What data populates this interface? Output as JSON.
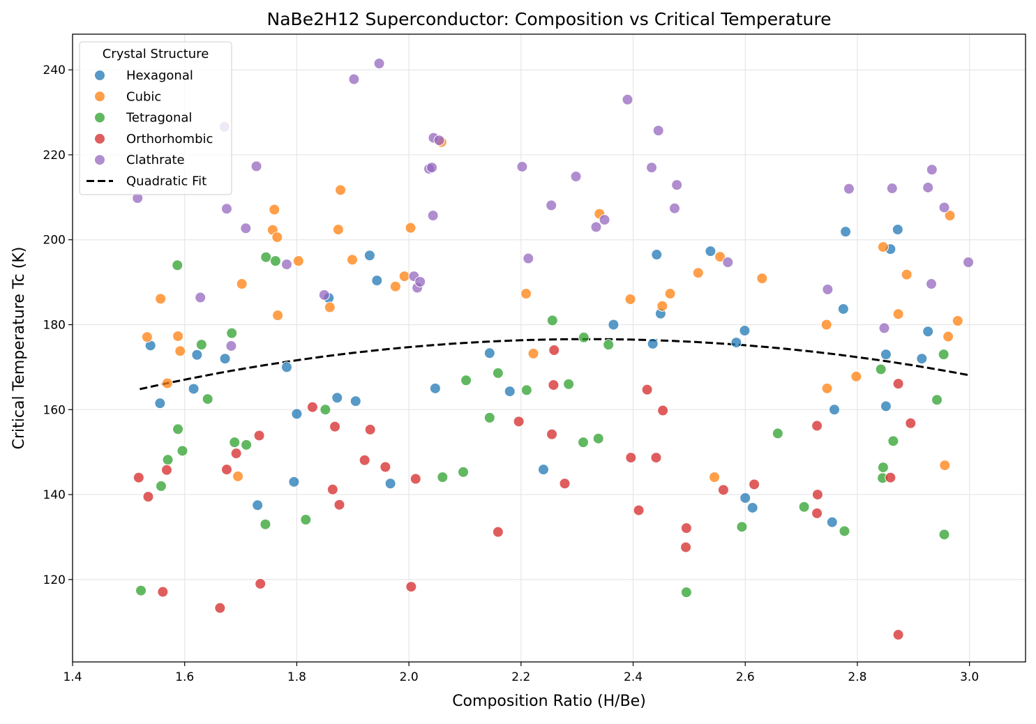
{
  "chart_data": {
    "type": "scatter",
    "title": "NaBe2H12 Superconductor: Composition vs Critical Temperature",
    "xlabel": "Composition Ratio (H/Be)",
    "ylabel": "Critical Temperature Tc (K)",
    "xlim": [
      1.4,
      3.1
    ],
    "ylim": [
      100.6,
      248.4
    ],
    "xticks": [
      1.4,
      1.6,
      1.8,
      2.0,
      2.2,
      2.4,
      2.6,
      2.8,
      3.0
    ],
    "xtick_labels": [
      "1.4",
      "1.6",
      "1.8",
      "2.0",
      "2.2",
      "2.4",
      "2.6",
      "2.8",
      "3.0"
    ],
    "yticks": [
      120,
      140,
      160,
      180,
      200,
      220,
      240
    ],
    "ytick_labels": [
      "120",
      "140",
      "160",
      "180",
      "200",
      "220",
      "240"
    ],
    "grid": true,
    "legend": {
      "title": "Crystal Structure",
      "placement": "top-left"
    },
    "series": [
      {
        "name": "Hexagonal",
        "color": "#1f77b4",
        "points": [
          [
            1.539,
            175.1
          ],
          [
            1.616,
            164.9
          ],
          [
            1.556,
            161.5
          ],
          [
            1.622,
            172.9
          ],
          [
            1.672,
            172.0
          ],
          [
            1.782,
            170.0
          ],
          [
            1.8,
            159.0
          ],
          [
            1.795,
            143.0
          ],
          [
            1.73,
            137.5
          ],
          [
            1.857,
            186.3
          ],
          [
            1.872,
            162.8
          ],
          [
            1.905,
            162.0
          ],
          [
            1.93,
            196.3
          ],
          [
            1.943,
            190.4
          ],
          [
            1.967,
            142.6
          ],
          [
            2.047,
            165.0
          ],
          [
            2.144,
            173.3
          ],
          [
            2.18,
            164.3
          ],
          [
            2.24,
            145.9
          ],
          [
            2.365,
            180.0
          ],
          [
            2.435,
            175.5
          ],
          [
            2.442,
            196.5
          ],
          [
            2.449,
            182.6
          ],
          [
            2.538,
            197.3
          ],
          [
            2.584,
            175.8
          ],
          [
            2.599,
            178.6
          ],
          [
            2.6,
            139.2
          ],
          [
            2.613,
            136.9
          ],
          [
            2.755,
            133.5
          ],
          [
            2.759,
            160.0
          ],
          [
            2.775,
            183.7
          ],
          [
            2.779,
            201.9
          ],
          [
            2.851,
            173.0
          ],
          [
            2.851,
            160.8
          ],
          [
            2.859,
            197.8
          ],
          [
            2.872,
            202.4
          ],
          [
            2.915,
            172.0
          ],
          [
            2.926,
            178.4
          ]
        ]
      },
      {
        "name": "Cubic",
        "color": "#ff7f0e",
        "points": [
          [
            1.533,
            177.1
          ],
          [
            1.557,
            186.1
          ],
          [
            1.569,
            166.2
          ],
          [
            1.588,
            177.3
          ],
          [
            1.592,
            173.8
          ],
          [
            1.695,
            144.3
          ],
          [
            1.702,
            189.6
          ],
          [
            1.757,
            202.3
          ],
          [
            1.76,
            207.1
          ],
          [
            1.765,
            200.6
          ],
          [
            1.766,
            182.2
          ],
          [
            1.803,
            195.0
          ],
          [
            1.859,
            184.1
          ],
          [
            1.874,
            202.4
          ],
          [
            1.878,
            211.7
          ],
          [
            1.899,
            195.3
          ],
          [
            1.976,
            189.0
          ],
          [
            1.992,
            191.4
          ],
          [
            2.003,
            202.8
          ],
          [
            2.058,
            223.0
          ],
          [
            2.209,
            187.3
          ],
          [
            2.222,
            173.2
          ],
          [
            2.34,
            206.1
          ],
          [
            2.395,
            186.0
          ],
          [
            2.452,
            184.4
          ],
          [
            2.466,
            187.3
          ],
          [
            2.516,
            192.2
          ],
          [
            2.545,
            144.1
          ],
          [
            2.555,
            196.0
          ],
          [
            2.63,
            190.9
          ],
          [
            2.745,
            180.0
          ],
          [
            2.746,
            165.0
          ],
          [
            2.798,
            167.8
          ],
          [
            2.846,
            198.3
          ],
          [
            2.873,
            182.5
          ],
          [
            2.888,
            191.8
          ],
          [
            2.956,
            146.9
          ],
          [
            2.962,
            177.2
          ],
          [
            2.965,
            205.7
          ],
          [
            2.979,
            180.9
          ]
        ]
      },
      {
        "name": "Tetragonal",
        "color": "#2ca02c",
        "points": [
          [
            1.522,
            117.4
          ],
          [
            1.558,
            142.0
          ],
          [
            1.57,
            148.2
          ],
          [
            1.587,
            194.0
          ],
          [
            1.588,
            155.4
          ],
          [
            1.596,
            150.3
          ],
          [
            1.63,
            175.3
          ],
          [
            1.641,
            162.5
          ],
          [
            1.684,
            178.0
          ],
          [
            1.689,
            152.3
          ],
          [
            1.71,
            151.7
          ],
          [
            1.744,
            133.0
          ],
          [
            1.745,
            195.9
          ],
          [
            1.762,
            195.0
          ],
          [
            1.816,
            134.1
          ],
          [
            1.851,
            160.0
          ],
          [
            2.06,
            144.1
          ],
          [
            2.097,
            145.3
          ],
          [
            2.102,
            166.9
          ],
          [
            2.144,
            158.1
          ],
          [
            2.159,
            168.6
          ],
          [
            2.21,
            164.6
          ],
          [
            2.256,
            181.0
          ],
          [
            2.285,
            166.0
          ],
          [
            2.311,
            152.3
          ],
          [
            2.312,
            177.0
          ],
          [
            2.338,
            153.2
          ],
          [
            2.356,
            175.3
          ],
          [
            2.495,
            117.0
          ],
          [
            2.594,
            132.4
          ],
          [
            2.658,
            154.4
          ],
          [
            2.705,
            137.1
          ],
          [
            2.777,
            131.4
          ],
          [
            2.842,
            169.5
          ],
          [
            2.845,
            143.9
          ],
          [
            2.846,
            146.4
          ],
          [
            2.864,
            152.6
          ],
          [
            2.942,
            162.3
          ],
          [
            2.954,
            173.0
          ],
          [
            2.955,
            130.6
          ]
        ]
      },
      {
        "name": "Orthorhombic",
        "color": "#d62728",
        "points": [
          [
            1.518,
            144.0
          ],
          [
            1.535,
            139.5
          ],
          [
            1.561,
            117.1
          ],
          [
            1.568,
            145.8
          ],
          [
            1.663,
            113.3
          ],
          [
            1.675,
            145.9
          ],
          [
            1.692,
            149.7
          ],
          [
            1.733,
            153.9
          ],
          [
            1.735,
            119.0
          ],
          [
            1.828,
            160.6
          ],
          [
            1.864,
            141.2
          ],
          [
            1.868,
            156.0
          ],
          [
            1.876,
            137.6
          ],
          [
            1.921,
            148.1
          ],
          [
            1.931,
            155.3
          ],
          [
            1.958,
            146.5
          ],
          [
            2.004,
            118.3
          ],
          [
            2.012,
            143.7
          ],
          [
            2.159,
            131.2
          ],
          [
            2.196,
            157.2
          ],
          [
            2.255,
            154.2
          ],
          [
            2.258,
            165.8
          ],
          [
            2.259,
            174.0
          ],
          [
            2.278,
            142.6
          ],
          [
            2.396,
            148.7
          ],
          [
            2.41,
            136.3
          ],
          [
            2.425,
            164.7
          ],
          [
            2.441,
            148.7
          ],
          [
            2.453,
            159.8
          ],
          [
            2.494,
            127.6
          ],
          [
            2.495,
            132.1
          ],
          [
            2.561,
            141.1
          ],
          [
            2.616,
            142.4
          ],
          [
            2.728,
            156.2
          ],
          [
            2.728,
            135.6
          ],
          [
            2.729,
            140.0
          ],
          [
            2.859,
            144.0
          ],
          [
            2.873,
            166.1
          ],
          [
            2.873,
            107.0
          ],
          [
            2.895,
            156.8
          ]
        ]
      },
      {
        "name": "Clathrate",
        "color": "#9467bd",
        "points": [
          [
            1.516,
            209.8
          ],
          [
            1.628,
            186.4
          ],
          [
            1.671,
            226.6
          ],
          [
            1.675,
            207.3
          ],
          [
            1.683,
            175.0
          ],
          [
            1.709,
            202.7
          ],
          [
            1.728,
            217.3
          ],
          [
            1.782,
            194.2
          ],
          [
            1.849,
            187.0
          ],
          [
            1.902,
            237.8
          ],
          [
            1.947,
            241.5
          ],
          [
            2.009,
            191.4
          ],
          [
            2.015,
            188.7
          ],
          [
            2.02,
            190.1
          ],
          [
            2.036,
            216.7
          ],
          [
            2.041,
            217.0
          ],
          [
            2.043,
            205.7
          ],
          [
            2.044,
            224.0
          ],
          [
            2.054,
            223.4
          ],
          [
            2.202,
            217.2
          ],
          [
            2.213,
            195.6
          ],
          [
            2.254,
            208.1
          ],
          [
            2.298,
            214.9
          ],
          [
            2.334,
            203.0
          ],
          [
            2.349,
            204.7
          ],
          [
            2.39,
            233.0
          ],
          [
            2.433,
            217.0
          ],
          [
            2.445,
            225.7
          ],
          [
            2.474,
            207.4
          ],
          [
            2.478,
            212.9
          ],
          [
            2.569,
            194.7
          ],
          [
            2.747,
            188.3
          ],
          [
            2.785,
            212.0
          ],
          [
            2.848,
            179.2
          ],
          [
            2.862,
            212.1
          ],
          [
            2.926,
            212.3
          ],
          [
            2.932,
            189.6
          ],
          [
            2.933,
            216.5
          ],
          [
            2.955,
            207.6
          ],
          [
            2.998,
            194.7
          ]
        ]
      }
    ],
    "fit": {
      "name": "Quadratic Fit",
      "color": "#000000",
      "style": "dashed",
      "x_range": [
        1.52,
        3.0
      ],
      "coefficients": {
        "a": -18.4,
        "h": 2.32,
        "k": 176.6
      }
    }
  }
}
